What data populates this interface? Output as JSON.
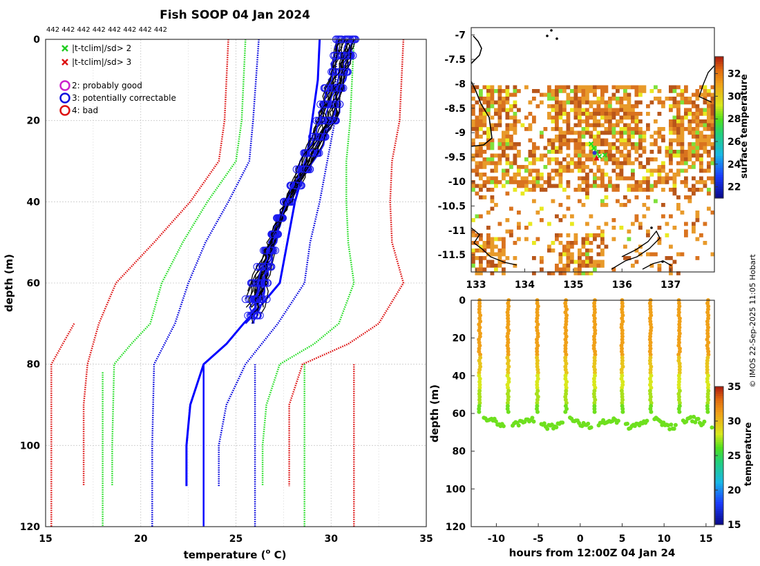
{
  "title": "Fish SOOP 04 Jan 2024",
  "credit": "© IMOS 22-Sep-2025 11:05 Hobart",
  "chart_data": [
    {
      "id": "profile",
      "type": "line",
      "count_label": "442 442 442 442 442 442 442 442",
      "xlabel": "temperature (",
      "xlabel_sup": "o",
      "xlabel_end": " C)",
      "ylabel": "depth (m)",
      "xlim": [
        15,
        35
      ],
      "ylim": [
        0,
        120
      ],
      "y_reversed": true,
      "xticks": [
        15,
        20,
        25,
        30,
        35
      ],
      "yticks": [
        0,
        20,
        40,
        60,
        80,
        100,
        120
      ],
      "grid": true,
      "legend": [
        {
          "marker": "x",
          "color": "#22cc22",
          "label": "|t-tclim|/sd> 2"
        },
        {
          "marker": "x",
          "color": "#dd1111",
          "label": "|t-tclim|/sd> 3"
        },
        {
          "marker": "o",
          "color": "#cc22cc",
          "label": "2: probably good"
        },
        {
          "marker": "o",
          "color": "#1111dd",
          "label": "3: potentially correctable"
        },
        {
          "marker": "o",
          "color": "#dd1111",
          "label": "4: bad"
        }
      ],
      "series": [
        {
          "name": "clim-mean",
          "color": "#0000ff",
          "style": "solid",
          "width": 3,
          "points": [
            [
              29.4,
              0
            ],
            [
              29.3,
              10
            ],
            [
              28.7,
              30
            ],
            [
              28.1,
              40
            ],
            [
              27.7,
              50
            ],
            [
              27.3,
              60
            ],
            [
              26.4,
              65
            ],
            [
              25.4,
              70
            ],
            [
              24.5,
              75
            ],
            [
              23.3,
              80
            ],
            [
              22.6,
              90
            ],
            [
              22.4,
              100
            ],
            [
              22.4,
              110
            ]
          ]
        },
        {
          "name": "clim-minus-1sd",
          "color": "#0000dd",
          "style": "dotted",
          "width": 2.5,
          "points": [
            [
              26.2,
              0
            ],
            [
              25.9,
              20
            ],
            [
              25.7,
              30
            ],
            [
              24.6,
              40
            ],
            [
              23.4,
              50
            ],
            [
              22.5,
              60
            ],
            [
              21.8,
              70
            ],
            [
              20.7,
              80
            ],
            [
              20.6,
              100
            ],
            [
              20.6,
              120
            ]
          ]
        },
        {
          "name": "clim-plus-1sd",
          "color": "#0000dd",
          "style": "dotted",
          "width": 2.5,
          "points": [
            [
              30.3,
              0
            ],
            [
              30.2,
              20
            ],
            [
              29.8,
              30
            ],
            [
              29.4,
              40
            ],
            [
              28.9,
              50
            ],
            [
              28.6,
              60
            ],
            [
              27.2,
              70
            ],
            [
              25.5,
              80
            ],
            [
              24.5,
              90
            ],
            [
              24.1,
              100
            ],
            [
              24.1,
              110
            ]
          ]
        },
        {
          "name": "clim-minus-2sd",
          "color": "#22dd22",
          "style": "dotted",
          "width": 2.5,
          "points": [
            [
              25.5,
              0
            ],
            [
              25.3,
              20
            ],
            [
              25.0,
              30
            ],
            [
              23.5,
              40
            ],
            [
              22.2,
              50
            ],
            [
              21.1,
              60
            ],
            [
              20.5,
              70
            ],
            [
              19.5,
              75
            ],
            [
              18.6,
              80
            ],
            [
              18.5,
              100
            ],
            [
              18.5,
              110
            ]
          ]
        },
        {
          "name": "clim-plus-2sd",
          "color": "#22dd22",
          "style": "dotted",
          "width": 2.5,
          "points": [
            [
              31.2,
              0
            ],
            [
              31.0,
              20
            ],
            [
              30.8,
              30
            ],
            [
              30.8,
              40
            ],
            [
              30.9,
              50
            ],
            [
              31.2,
              60
            ],
            [
              30.4,
              70
            ],
            [
              29.1,
              75
            ],
            [
              27.3,
              80
            ],
            [
              26.6,
              90
            ],
            [
              26.4,
              100
            ],
            [
              26.4,
              110
            ]
          ]
        },
        {
          "name": "clim-minus-3sd",
          "color": "#dd1111",
          "style": "dotted",
          "width": 2.5,
          "points": [
            [
              24.6,
              0
            ],
            [
              24.4,
              20
            ],
            [
              24.1,
              30
            ],
            [
              22.6,
              40
            ],
            [
              20.7,
              50
            ],
            [
              18.7,
              60
            ],
            [
              17.8,
              70
            ],
            [
              17.2,
              80
            ],
            [
              17.0,
              90
            ],
            [
              17.0,
              100
            ],
            [
              17.0,
              110
            ]
          ]
        },
        {
          "name": "clim-plus-3sd",
          "color": "#dd1111",
          "style": "dotted",
          "width": 2.5,
          "points": [
            [
              33.8,
              0
            ],
            [
              33.6,
              20
            ],
            [
              33.2,
              30
            ],
            [
              33.1,
              40
            ],
            [
              33.2,
              50
            ],
            [
              33.8,
              60
            ],
            [
              32.5,
              70
            ],
            [
              30.9,
              75
            ],
            [
              28.5,
              80
            ],
            [
              27.8,
              90
            ],
            [
              27.8,
              100
            ],
            [
              27.8,
              110
            ]
          ]
        },
        {
          "name": "outer-bound-left-green",
          "color": "#22dd22",
          "style": "dotted",
          "width": 2.5,
          "points": [
            [
              18.0,
              82
            ],
            [
              18.0,
              120
            ]
          ]
        },
        {
          "name": "outer-bound-left-red",
          "color": "#dd1111",
          "style": "dotted",
          "width": 2.5,
          "points": [
            [
              16.5,
              70
            ],
            [
              15.3,
              80
            ],
            [
              15.3,
              120
            ]
          ]
        },
        {
          "name": "outer-bound-right-green",
          "color": "#22dd22",
          "style": "dotted",
          "width": 2.5,
          "points": [
            [
              28.6,
              80
            ],
            [
              28.6,
              120
            ]
          ]
        },
        {
          "name": "outer-bound-right-red",
          "color": "#dd1111",
          "style": "dotted",
          "width": 2.5,
          "points": [
            [
              31.2,
              80
            ],
            [
              31.2,
              120
            ]
          ]
        },
        {
          "name": "clim-mean-deep",
          "color": "#0000ff",
          "style": "solid",
          "width": 2.5,
          "points": [
            [
              23.3,
              80
            ],
            [
              23.3,
              120
            ]
          ]
        },
        {
          "name": "clim-minus-1sd-deep",
          "color": "#0000dd",
          "style": "dotted",
          "width": 2.5,
          "points": [
            [
              26.0,
              80
            ],
            [
              26.0,
              120
            ]
          ]
        }
      ],
      "profiles": {
        "color": "#000000",
        "surface_temp_range": [
          30.4,
          31.4
        ],
        "mixed_depth": 45,
        "bottom_depth_range": [
          62,
          72
        ],
        "bottom_temp_range": [
          25.5,
          26.3
        ],
        "count": 22
      }
    },
    {
      "id": "map",
      "type": "heatmap",
      "xlim": [
        132.9,
        137.9
      ],
      "ylim": [
        -11.85,
        -6.85
      ],
      "xticks": [
        133,
        134,
        135,
        136,
        137
      ],
      "yticks": [
        -7,
        -7.5,
        -8,
        -8.5,
        -9,
        -9.5,
        -10,
        -10.5,
        -11,
        -11.5
      ],
      "xtick_labels": [
        "133",
        "134",
        "135",
        "136",
        "137"
      ],
      "ytick_labels": [
        "-7",
        "-7.5",
        "-8",
        "-8.5",
        "-9",
        "-9.5",
        "-10",
        "-10.5",
        "-11",
        "-11.5"
      ],
      "colorbar": {
        "label": "surface temperature",
        "range": [
          21,
          33.5
        ],
        "ticks": [
          "22",
          "24",
          "26",
          "28",
          "30",
          "32"
        ]
      },
      "track_point": [
        135.45,
        -9.4
      ]
    },
    {
      "id": "section",
      "type": "scatter",
      "xlabel": "hours from 12:00Z 04 Jan 24",
      "ylabel": "depth (m)",
      "xlim": [
        -13,
        16
      ],
      "ylim": [
        0,
        120
      ],
      "y_reversed": true,
      "xticks": [
        -10,
        -5,
        0,
        5,
        10,
        15
      ],
      "xtick_labels": [
        "-10",
        "-5",
        "0",
        "5",
        "10",
        "15"
      ],
      "yticks": [
        0,
        20,
        40,
        60,
        80,
        100,
        120
      ],
      "colorbar": {
        "label": "temperature",
        "range": [
          15,
          35
        ],
        "ticks": [
          "15",
          "20",
          "25",
          "30",
          "35"
        ]
      },
      "casts_at_hours": [
        -12.0,
        -8.6,
        -5.1,
        -1.7,
        1.7,
        5.0,
        8.4,
        11.8,
        15.2
      ],
      "bottom_depth_mean": 65
    }
  ]
}
